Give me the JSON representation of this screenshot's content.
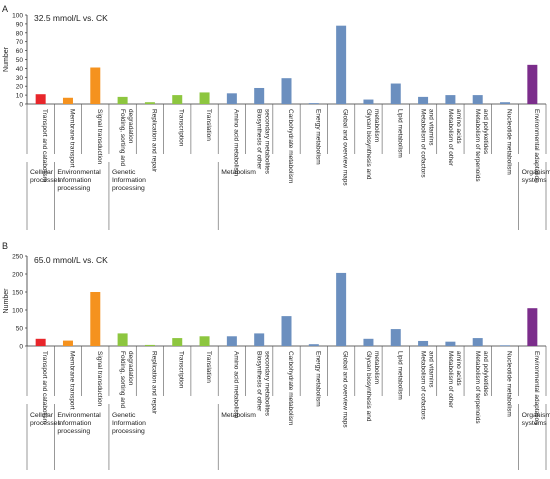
{
  "chart_data": [
    {
      "type": "bar",
      "panel_letter": "A",
      "title": "32.5 mmol/L vs. CK",
      "ylabel": "Number",
      "ylim": [
        0,
        100
      ],
      "yticks": [
        0,
        10,
        20,
        30,
        40,
        50,
        60,
        70,
        80,
        90,
        100
      ],
      "categories": [
        "Transport and catabolism",
        "Membrane transport",
        "Signal transduction",
        "Folding, sorting and degradation",
        "Replication and repair",
        "Transcription",
        "Translation",
        "Amino acid metabolism",
        "Biosynthesis of other secondary metabolites",
        "Carbohydrate metabolism",
        "Energy metabolism",
        "Global and overview maps",
        "Glycan biosynthesis and metabolism",
        "Lipid metabolism",
        "Metabolism of cofactors and vitamins",
        "Metabolism of other amino acids",
        "Metabolism of terpenoids and polyketides",
        "Nucleotide metabolism",
        "Environmental adaptation"
      ],
      "values": [
        11,
        7,
        41,
        8,
        2,
        10,
        13,
        12,
        18,
        29,
        1,
        88,
        5,
        23,
        8,
        10,
        10,
        2,
        44
      ],
      "colors": [
        "#e8262b",
        "#f5921e",
        "#f5921e",
        "#8dc63f",
        "#8dc63f",
        "#8dc63f",
        "#8dc63f",
        "#6b8fbf",
        "#6b8fbf",
        "#6b8fbf",
        "#6b8fbf",
        "#6b8fbf",
        "#6b8fbf",
        "#6b8fbf",
        "#6b8fbf",
        "#6b8fbf",
        "#6b8fbf",
        "#6b8fbf",
        "#7b2d8b"
      ],
      "groups": [
        {
          "label": "Cellular processes",
          "count": 1
        },
        {
          "label": "Environmental Information processing",
          "count": 2
        },
        {
          "label": "Genetic Information processing",
          "count": 4
        },
        {
          "label": "Metabolism",
          "count": 11
        },
        {
          "label": "Organismal systems",
          "count": 1
        }
      ]
    },
    {
      "type": "bar",
      "panel_letter": "B",
      "title": "65.0 mmol/L vs. CK",
      "ylabel": "Number",
      "ylim": [
        0,
        250
      ],
      "yticks": [
        0,
        50,
        100,
        150,
        200,
        250
      ],
      "categories": [
        "Transport and catabolism",
        "Membrane transport",
        "Signal transduction",
        "Folding, sorting and degradation",
        "Replication and repair",
        "Transcription",
        "Translation",
        "Amino acid metabolism",
        "Biosynthesis of other secondary metabolites",
        "Carbohydrate metabolism",
        "Energy metabolism",
        "Global and overview maps",
        "Glycan biosynthesis and metabolism",
        "Lipid metabolism",
        "Metabolism of cofactors and vitamins",
        "Metabolism of other amino acids",
        "Metabolism of terpenoids and polyketides",
        "Nucleotide metabolism",
        "Environmental adaptation"
      ],
      "values": [
        20,
        15,
        150,
        35,
        3,
        22,
        27,
        27,
        35,
        83,
        5,
        203,
        20,
        47,
        14,
        12,
        22,
        2,
        105
      ],
      "colors": [
        "#e8262b",
        "#f5921e",
        "#f5921e",
        "#8dc63f",
        "#8dc63f",
        "#8dc63f",
        "#8dc63f",
        "#6b8fbf",
        "#6b8fbf",
        "#6b8fbf",
        "#6b8fbf",
        "#6b8fbf",
        "#6b8fbf",
        "#6b8fbf",
        "#6b8fbf",
        "#6b8fbf",
        "#6b8fbf",
        "#6b8fbf",
        "#7b2d8b"
      ],
      "groups": [
        {
          "label": "Cellular processes",
          "count": 1
        },
        {
          "label": "Environmental Information processing",
          "count": 2
        },
        {
          "label": "Genetic Information processing",
          "count": 4
        },
        {
          "label": "Metabolism",
          "count": 11
        },
        {
          "label": "Organismal systems",
          "count": 1
        }
      ]
    }
  ]
}
